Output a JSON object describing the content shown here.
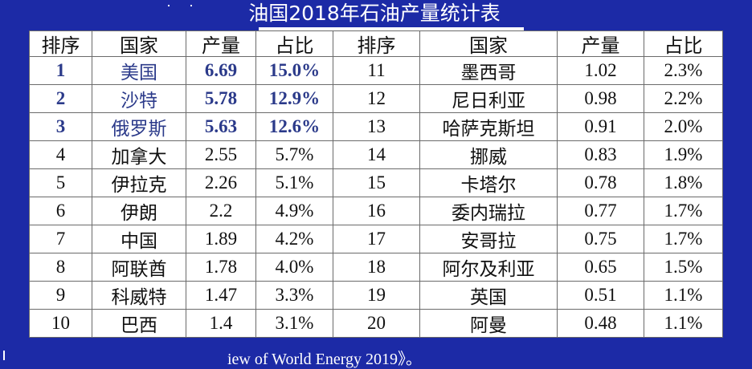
{
  "title": "油国2018年石油产量统计表",
  "headers": [
    "排序",
    "国家",
    "产量",
    "占比",
    "排序",
    "国家",
    "产量",
    "占比"
  ],
  "left_rows": [
    {
      "rank": "1",
      "country": "美国",
      "production": "6.69",
      "share": "15.0%"
    },
    {
      "rank": "2",
      "country": "沙特",
      "production": "5.78",
      "share": "12.9%"
    },
    {
      "rank": "3",
      "country": "俄罗斯",
      "production": "5.63",
      "share": "12.6%"
    },
    {
      "rank": "4",
      "country": "加拿大",
      "production": "2.55",
      "share": "5.7%"
    },
    {
      "rank": "5",
      "country": "伊拉克",
      "production": "2.26",
      "share": "5.1%"
    },
    {
      "rank": "6",
      "country": "伊朗",
      "production": "2.2",
      "share": "4.9%"
    },
    {
      "rank": "7",
      "country": "中国",
      "production": "1.89",
      "share": "4.2%"
    },
    {
      "rank": "8",
      "country": "阿联酋",
      "production": "1.78",
      "share": "4.0%"
    },
    {
      "rank": "9",
      "country": "科威特",
      "production": "1.47",
      "share": "3.3%"
    },
    {
      "rank": "10",
      "country": "巴西",
      "production": "1.4",
      "share": "3.1%"
    }
  ],
  "right_rows": [
    {
      "rank": "11",
      "country": "墨西哥",
      "production": "1.02",
      "share": "2.3%"
    },
    {
      "rank": "12",
      "country": "尼日利亚",
      "production": "0.98",
      "share": "2.2%"
    },
    {
      "rank": "13",
      "country": "哈萨克斯坦",
      "production": "0.91",
      "share": "2.0%"
    },
    {
      "rank": "14",
      "country": "挪威",
      "production": "0.83",
      "share": "1.9%"
    },
    {
      "rank": "15",
      "country": "卡塔尔",
      "production": "0.78",
      "share": "1.8%"
    },
    {
      "rank": "16",
      "country": "委内瑞拉",
      "production": "0.77",
      "share": "1.7%"
    },
    {
      "rank": "17",
      "country": "安哥拉",
      "production": "0.75",
      "share": "1.7%"
    },
    {
      "rank": "18",
      "country": "阿尔及利亚",
      "production": "0.65",
      "share": "1.5%"
    },
    {
      "rank": "19",
      "country": "英国",
      "production": "0.51",
      "share": "1.1%"
    },
    {
      "rank": "20",
      "country": "阿曼",
      "production": "0.48",
      "share": "1.1%"
    }
  ],
  "highlight_color": "#2b3a8a",
  "background_color": "#1c2aa6",
  "source_text": "iew of World Energy 2019》。"
}
